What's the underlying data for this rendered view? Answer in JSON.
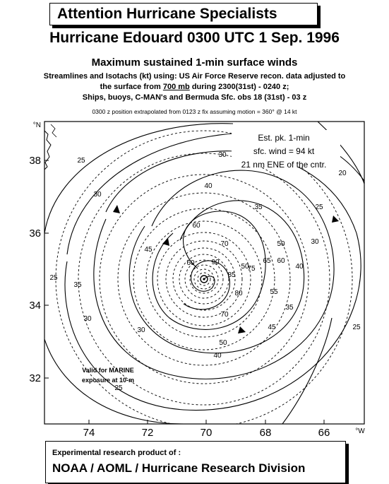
{
  "header": {
    "banner": "Attention Hurricane Specialists",
    "title": "Hurricane Edouard 0300 UTC 1 Sep. 1996",
    "subtitle": "Maximum sustained 1-min surface winds",
    "methods_l1": "Streamlines and Isotachs (kt) using: US Air Force Reserve recon. data adjusted to",
    "methods_l2_a": "the surface from ",
    "methods_l2_u": "700 mb",
    "methods_l2_b": " during 2300(31st) - 0240 z;",
    "methods_l3": "Ships, buoys, C-MAN's and Bermuda Sfc. obs 18 (31st) - 03 z",
    "note": "0300 z position extrapolated from 0123 z fix assuming motion = 360° @ 14 kt"
  },
  "map": {
    "lat_unit": "°N",
    "lon_unit": "°W",
    "lat_labels": [
      "38",
      "36",
      "34",
      "32"
    ],
    "lon_labels": [
      "74",
      "72",
      "70",
      "68",
      "66"
    ],
    "isotach_labels": [
      "25",
      "30",
      "20",
      "40",
      "25",
      "30",
      "35",
      "60",
      "45",
      "50",
      "70",
      "30",
      "50",
      "75",
      "60",
      "55",
      "65",
      "40",
      "90",
      "85",
      "80",
      "70",
      "60",
      "35",
      "45",
      "35",
      "25",
      "30",
      "50",
      "40",
      "25",
      "25",
      "30"
    ],
    "annotation": {
      "l1": "Est. pk. 1-min",
      "l2": "sfc. wind = 94 kt",
      "l3": "21 nm ENE of the cntr."
    },
    "valid_note": {
      "l1": "Valid for MARINE",
      "l2": "exposure at 10-m"
    }
  },
  "footer": {
    "line1": "Experimental research product of :",
    "line2": "NOAA / AOML / Hurricane Research Division"
  }
}
